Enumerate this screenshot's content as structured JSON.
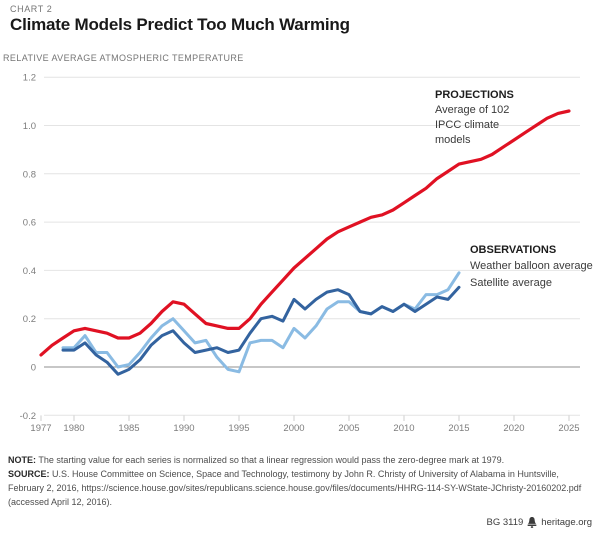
{
  "header": {
    "kicker": "CHART 2",
    "title": "Climate Models Predict Too Much Warming",
    "subtitle": "RELATIVE AVERAGE ATMOSPHERIC TEMPERATURE"
  },
  "annotations": {
    "projections": {
      "label": "PROJECTIONS",
      "desc": "Average of 102\nIPCC climate\nmodels"
    },
    "observations": {
      "label": "OBSERVATIONS",
      "balloon": "Weather balloon average",
      "satellite": "Satellite average"
    }
  },
  "footer": {
    "note_label": "NOTE:",
    "note_text": "The starting value for each series is normalized so that a linear regression would pass the zero-degree mark at 1979.",
    "source_label": "SOURCE:",
    "source_text": "U.S. House Committee on Science, Space and Technology, testimony by John R. Christy of University of Alabama in Huntsville, February 2, 2016, https://science.house.gov/sites/republicans.science.house.gov/files/documents/HHRG-114-SY-WState-JChristy-20160202.pdf (accessed April 12, 2016).",
    "credit_id": "BG 3119",
    "credit_site": "heritage.org"
  },
  "chart_data": {
    "type": "line",
    "title": "Climate Models Predict Too Much Warming",
    "subtitle": "RELATIVE AVERAGE ATMOSPHERIC TEMPERATURE",
    "xlabel": "",
    "ylabel": "Relative average atmospheric temperature (°C)",
    "xlim": [
      1976.5,
      2026.5
    ],
    "ylim": [
      -0.25,
      1.25
    ],
    "grid": "horizontal-only",
    "legend_position": "inline-annotations",
    "x_ticks": [
      "1977",
      "1980",
      "1985",
      "1990",
      "1995",
      "2000",
      "2005",
      "2010",
      "2015",
      "2020",
      "2025"
    ],
    "y_ticks": [
      "1.2",
      "1.0",
      "0.8",
      "0.6",
      "0.4",
      "0.2",
      "0",
      "-0.2"
    ],
    "axis": {
      "grid_color": "#e4e4e4",
      "zero_line_color": "#8f8f8f",
      "tick_color": "#cfcfcf",
      "label_color": "#7d7d7d"
    },
    "series": [
      {
        "name": "Projections (average of 102 IPCC climate models)",
        "color": "#e01123",
        "stroke_width": 3.2,
        "x": [
          1977,
          1978,
          1979,
          1980,
          1981,
          1982,
          1983,
          1984,
          1985,
          1986,
          1987,
          1988,
          1989,
          1990,
          1991,
          1992,
          1993,
          1994,
          1995,
          1996,
          1997,
          1998,
          1999,
          2000,
          2001,
          2002,
          2003,
          2004,
          2005,
          2006,
          2007,
          2008,
          2009,
          2010,
          2011,
          2012,
          2013,
          2014,
          2015,
          2016,
          2017,
          2018,
          2019,
          2020,
          2021,
          2022,
          2023,
          2024,
          2025
        ],
        "values": [
          0.05,
          0.09,
          0.12,
          0.15,
          0.16,
          0.15,
          0.14,
          0.12,
          0.12,
          0.14,
          0.18,
          0.23,
          0.27,
          0.26,
          0.22,
          0.18,
          0.17,
          0.16,
          0.16,
          0.2,
          0.26,
          0.31,
          0.36,
          0.41,
          0.45,
          0.49,
          0.53,
          0.56,
          0.58,
          0.6,
          0.62,
          0.63,
          0.65,
          0.68,
          0.71,
          0.74,
          0.78,
          0.81,
          0.84,
          0.85,
          0.86,
          0.88,
          0.91,
          0.94,
          0.97,
          1.0,
          1.03,
          1.05,
          1.06
        ]
      },
      {
        "name": "Weather balloon average",
        "color": "#8abbe3",
        "stroke_width": 3,
        "x": [
          1979,
          1980,
          1981,
          1982,
          1983,
          1984,
          1985,
          1986,
          1987,
          1988,
          1989,
          1990,
          1991,
          1992,
          1993,
          1994,
          1995,
          1996,
          1997,
          1998,
          1999,
          2000,
          2001,
          2002,
          2003,
          2004,
          2005,
          2006,
          2007,
          2008,
          2009,
          2010,
          2011,
          2012,
          2013,
          2014,
          2015
        ],
        "values": [
          0.08,
          0.08,
          0.13,
          0.06,
          0.06,
          0.0,
          0.01,
          0.06,
          0.12,
          0.17,
          0.2,
          0.15,
          0.1,
          0.11,
          0.04,
          -0.01,
          -0.02,
          0.1,
          0.11,
          0.11,
          0.08,
          0.16,
          0.12,
          0.17,
          0.24,
          0.27,
          0.27,
          0.23,
          0.22,
          0.25,
          0.23,
          0.26,
          0.24,
          0.3,
          0.3,
          0.32,
          0.39
        ]
      },
      {
        "name": "Satellite average",
        "color": "#33639f",
        "stroke_width": 3,
        "x": [
          1979,
          1980,
          1981,
          1982,
          1983,
          1984,
          1985,
          1986,
          1987,
          1988,
          1989,
          1990,
          1991,
          1992,
          1993,
          1994,
          1995,
          1996,
          1997,
          1998,
          1999,
          2000,
          2001,
          2002,
          2003,
          2004,
          2005,
          2006,
          2007,
          2008,
          2009,
          2010,
          2011,
          2012,
          2013,
          2014,
          2015
        ],
        "values": [
          0.07,
          0.07,
          0.1,
          0.05,
          0.02,
          -0.03,
          -0.01,
          0.03,
          0.09,
          0.13,
          0.15,
          0.1,
          0.06,
          0.07,
          0.08,
          0.06,
          0.07,
          0.14,
          0.2,
          0.21,
          0.19,
          0.28,
          0.24,
          0.28,
          0.31,
          0.32,
          0.3,
          0.23,
          0.22,
          0.25,
          0.23,
          0.26,
          0.23,
          0.26,
          0.29,
          0.28,
          0.33
        ]
      }
    ]
  }
}
